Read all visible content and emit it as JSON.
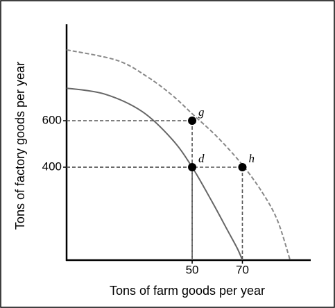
{
  "chart_data": {
    "type": "line",
    "x_label": "Tons of farm goods per year",
    "y_label": "Tons of factory goods per year",
    "xlim": [
      0,
      95
    ],
    "ylim": [
      0,
      1000
    ],
    "xticks": [
      50,
      70
    ],
    "yticks": [
      400,
      600
    ],
    "curves": [
      {
        "style": "solid",
        "color": "#666666",
        "x": [
          0,
          15,
          30,
          42,
          50,
          58,
          64,
          68,
          70
        ],
        "y": [
          740,
          715,
          640,
          520,
          400,
          250,
          130,
          50,
          0
        ]
      },
      {
        "style": "dashed",
        "color": "#888888",
        "x": [
          0,
          20,
          32,
          42,
          50,
          60,
          70,
          78,
          84,
          89
        ],
        "y": [
          905,
          860,
          790,
          710,
          630,
          530,
          410,
          290,
          170,
          0
        ]
      }
    ],
    "points": [
      {
        "label": "g",
        "x": 50,
        "y": 600
      },
      {
        "label": "d",
        "x": 50,
        "y": 400
      },
      {
        "label": "h",
        "x": 70,
        "y": 400
      }
    ],
    "point_color": "#000000"
  }
}
